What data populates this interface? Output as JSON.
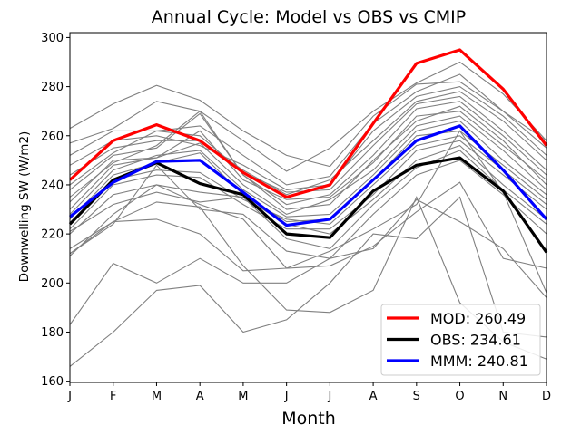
{
  "chart_data": {
    "type": "line",
    "title": "Annual Cycle: Model vs OBS vs CMIP",
    "xlabel": "Month",
    "ylabel": "Downwelling SW (W/m2)",
    "categories": [
      "J",
      "F",
      "M",
      "A",
      "M",
      "J",
      "J",
      "A",
      "S",
      "O",
      "N",
      "D"
    ],
    "ylim": [
      159.5,
      302
    ],
    "yticks": [
      160,
      180,
      200,
      220,
      240,
      260,
      280,
      300
    ],
    "grid": false,
    "legend_position": "lower-right",
    "series": [
      {
        "name": "MOD",
        "label": "MOD: 260.49",
        "color": "#ff0000",
        "values": [
          242,
          258,
          264.5,
          258,
          245,
          235,
          240,
          265,
          289.5,
          295,
          279,
          256
        ]
      },
      {
        "name": "OBS",
        "label": "OBS: 234.61",
        "color": "#000000",
        "values": [
          224,
          242,
          249,
          240.5,
          236,
          220,
          218.5,
          237.5,
          248,
          251,
          237.5,
          212.5
        ]
      },
      {
        "name": "MMM",
        "label": "MMM: 240.81",
        "color": "#0000ff",
        "values": [
          227,
          241,
          249.5,
          250,
          237,
          223.5,
          226,
          242,
          258,
          264,
          246,
          226
        ]
      }
    ],
    "cmip_color": "#808080",
    "cmip_models": [
      {
        "name": "cmip-1",
        "values": [
          263,
          273,
          280.5,
          274.5,
          262,
          252,
          247.5,
          268,
          281,
          282,
          270,
          258
        ]
      },
      {
        "name": "cmip-2",
        "values": [
          257,
          263,
          274,
          270,
          258,
          245.5,
          255,
          270,
          281.5,
          290,
          277,
          258
        ]
      },
      {
        "name": "cmip-3",
        "values": [
          252,
          262,
          262,
          264,
          252,
          240,
          243.5,
          265,
          278,
          285,
          270,
          255
        ]
      },
      {
        "name": "cmip-4",
        "values": [
          248,
          258,
          260,
          256,
          248,
          238,
          240,
          262,
          276,
          280,
          268,
          252
        ]
      },
      {
        "name": "cmip-5",
        "values": [
          244,
          255,
          258,
          258,
          246,
          236,
          242,
          258,
          274,
          278,
          266,
          250
        ]
      },
      {
        "name": "cmip-6",
        "values": [
          240,
          253,
          262,
          260,
          245,
          237,
          238,
          256,
          273,
          276,
          262,
          246
        ]
      },
      {
        "name": "cmip-7",
        "values": [
          238,
          252,
          255,
          269,
          244,
          232,
          236,
          252,
          271,
          274,
          260,
          244
        ]
      },
      {
        "name": "cmip-8",
        "values": [
          235,
          249,
          256,
          270,
          244,
          230,
          232,
          250,
          266,
          272,
          258,
          240
        ]
      },
      {
        "name": "cmip-9",
        "values": [
          233,
          250,
          251,
          262,
          242,
          234,
          235,
          249,
          268,
          270,
          256,
          242
        ]
      },
      {
        "name": "cmip-10",
        "values": [
          230,
          248,
          251,
          257,
          240,
          228,
          234,
          246,
          264,
          268,
          254,
          238
        ]
      },
      {
        "name": "cmip-11",
        "values": [
          228,
          246,
          252,
          254,
          238,
          227,
          228,
          244,
          262,
          266,
          250,
          236
        ]
      },
      {
        "name": "cmip-12",
        "values": [
          226,
          244,
          249,
          253,
          236,
          225,
          226,
          242,
          260,
          262,
          248,
          234
        ]
      },
      {
        "name": "cmip-13",
        "values": [
          224,
          242,
          246,
          245,
          234,
          226,
          224,
          240,
          256,
          260,
          246,
          232
        ]
      },
      {
        "name": "cmip-14",
        "values": [
          222,
          240,
          244,
          243,
          232,
          222,
          222,
          236,
          254,
          258,
          244,
          230
        ]
      },
      {
        "name": "cmip-15",
        "values": [
          220,
          236,
          240,
          237,
          235,
          224,
          220,
          234,
          250,
          256,
          240,
          226
        ]
      },
      {
        "name": "cmip-16",
        "values": [
          221,
          232,
          237,
          233,
          235,
          218,
          214,
          232,
          247,
          254,
          238,
          224
        ]
      },
      {
        "name": "cmip-17",
        "values": [
          212,
          224,
          248,
          230,
          228,
          213,
          210,
          228,
          244,
          250,
          236,
          220
        ]
      },
      {
        "name": "cmip-18",
        "values": [
          212,
          225,
          226,
          220,
          205,
          206,
          213,
          222,
          232,
          262,
          237,
          196
        ]
      },
      {
        "name": "cmip-19",
        "values": [
          211,
          228,
          240,
          232,
          226,
          206,
          207,
          215,
          229,
          241,
          210,
          206
        ]
      },
      {
        "name": "cmip-20",
        "values": [
          183,
          208,
          200,
          210,
          200,
          200,
          210,
          214,
          234,
          225,
          214,
          194
        ]
      },
      {
        "name": "cmip-21",
        "values": [
          214,
          225,
          233,
          231,
          207,
          189,
          188,
          197,
          235,
          192,
          176,
          169
        ]
      },
      {
        "name": "cmip-22",
        "values": [
          166,
          180,
          197,
          199,
          180,
          185,
          200,
          220,
          218,
          235,
          180,
          178
        ]
      }
    ]
  }
}
